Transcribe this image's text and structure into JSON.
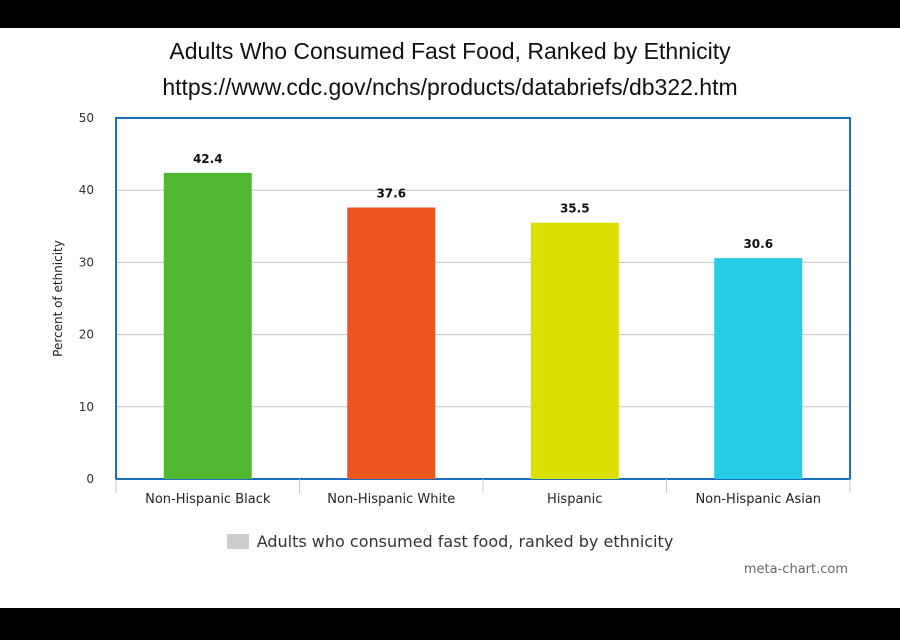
{
  "chart_data": {
    "type": "bar",
    "title": "Adults Who Consumed Fast Food, Ranked by Ethnicity",
    "subtitle": "https://www.cdc.gov/nchs/products/databriefs/db322.htm",
    "xlabel": "",
    "ylabel": "Percent of ethnicity",
    "ylim": [
      0,
      50
    ],
    "yticks": [
      "0",
      "10",
      "20",
      "30",
      "40",
      "50"
    ],
    "grid": true,
    "categories": [
      "Non-Hispanic Black",
      "Non-Hispanic White",
      "Hispanic",
      "Non-Hispanic Asian"
    ],
    "values": [
      42.4,
      37.6,
      35.5,
      30.6
    ],
    "data_labels": [
      "42.4",
      "37.6",
      "35.5",
      "30.6"
    ],
    "bar_colors": [
      "#52b830",
      "#ea561d",
      "#dbe000",
      "#26cbe5"
    ],
    "legend": {
      "position": "bottom",
      "label": "Adults who consumed fast food, ranked by ethnicity",
      "color": "#cccccc"
    },
    "axis_color": "#1a6fba",
    "credit": "meta-chart.com"
  }
}
